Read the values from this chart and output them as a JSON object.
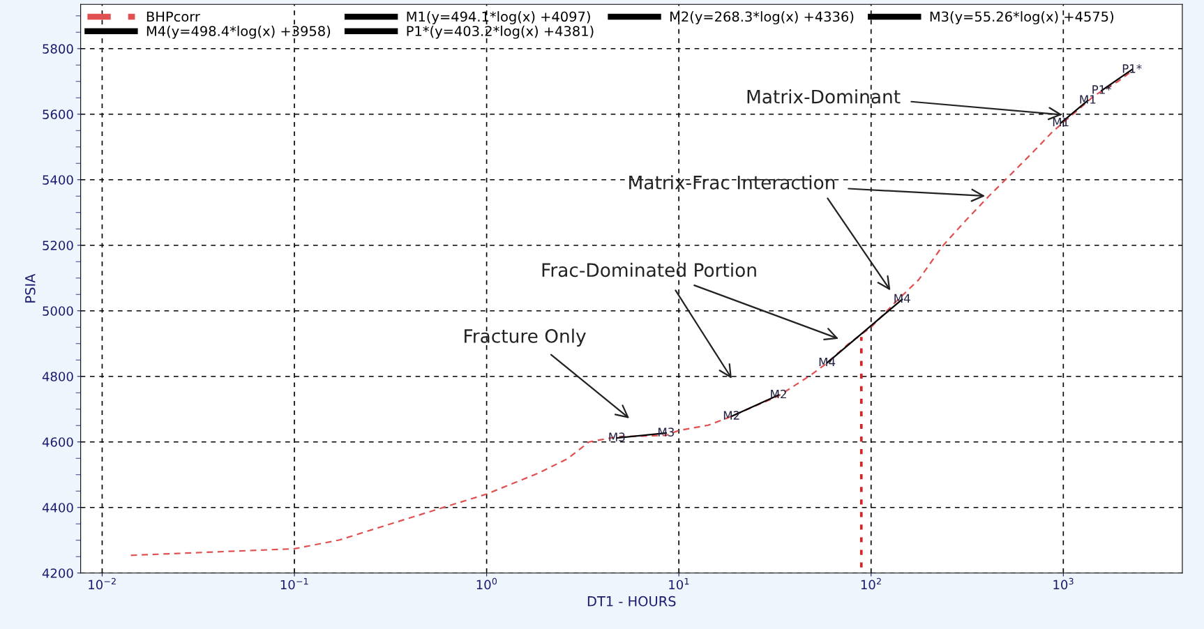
{
  "chart_data": {
    "type": "line",
    "xlabel": "DT1 - HOURS",
    "ylabel": "PSIA",
    "log": "x",
    "xlim": [
      0.00773,
      4160
    ],
    "ylim": [
      4200,
      5935
    ],
    "xticks": [
      {
        "value": 0.01,
        "label": "10$^{−2}$"
      },
      {
        "value": 0.1,
        "label": "10$^{−1}$"
      },
      {
        "value": 1,
        "label": "10$^{0}$"
      },
      {
        "value": 10,
        "label": "10$^{1}$"
      },
      {
        "value": 100,
        "label": "10$^{2}$"
      },
      {
        "value": 1000,
        "label": "10$^{3}$"
      }
    ],
    "yticks": [
      4200,
      4400,
      4600,
      4800,
      5000,
      5200,
      5400,
      5600,
      5800
    ],
    "grid": true,
    "legend": "top",
    "marker": "none",
    "series": [
      {
        "name": "BHPcorr",
        "color": "#e05050",
        "line_style": "dashed",
        "x": [
          0.0141,
          0.1,
          0.172,
          0.313,
          0.618,
          1,
          1.88,
          2.64,
          3.41,
          4.79,
          8.58,
          10,
          14.2,
          17.7,
          32.9,
          40,
          48.6,
          57.5,
          76.2,
          100,
          133,
          177,
          234,
          310,
          410,
          528,
          700,
          877,
          1000,
          1161,
          1453,
          1924,
          2275
        ],
        "values": [
          4254,
          4274,
          4301,
          4349,
          4403,
          4441,
          4506,
          4549,
          4600,
          4616,
          4620,
          4635,
          4651,
          4672,
          4740,
          4772,
          4804,
          4836,
          4899,
          4950,
          5025,
          5095,
          5196,
          5275,
          5350,
          5414,
          5486,
          5546,
          5575,
          5607,
          5657,
          5700,
          5732
        ]
      },
      {
        "name": "M1(y=494.1*log(x) +4097)",
        "color": "#000000",
        "line_style": "solid",
        "x": [
          970,
          1340
        ],
        "values": [
          5573,
          5642
        ]
      },
      {
        "name": "M2(y=268.3*log(x) +4336)",
        "color": "#000000",
        "line_style": "solid",
        "x": [
          18.8,
          33
        ],
        "values": [
          4678,
          4743
        ]
      },
      {
        "name": "M3(y=55.26*log(x) +4575)",
        "color": "#000000",
        "line_style": "solid",
        "x": [
          4.76,
          8.58
        ],
        "values": [
          4612,
          4627
        ]
      },
      {
        "name": "M4(y=498.4*log(x) +3958)",
        "color": "#000000",
        "line_style": "solid",
        "x": [
          59,
          145
        ],
        "values": [
          4841,
          5035
        ]
      },
      {
        "name": "P1*(y=403.2*log(x) +4381)",
        "color": "#000000",
        "line_style": "solid",
        "x": [
          1581,
          2275
        ],
        "values": [
          5672,
          5736
        ]
      },
      {
        "color": "#e02020",
        "line_style": "dotted",
        "x": [
          89,
          89
        ],
        "values": [
          4217,
          4920
        ]
      }
    ],
    "annotations": [
      {
        "text": "M1",
        "x": 970,
        "y": 5573
      },
      {
        "text": "M1",
        "x": 1340,
        "y": 5642
      },
      {
        "text": "P1*",
        "x": 1581,
        "y": 5672
      },
      {
        "text": "P1*",
        "x": 2275,
        "y": 5736
      },
      {
        "text": "M2",
        "x": 18.8,
        "y": 4678
      },
      {
        "text": "M2",
        "x": 33,
        "y": 4743
      },
      {
        "text": "M3",
        "x": 4.76,
        "y": 4612
      },
      {
        "text": "M3",
        "x": 8.58,
        "y": 4627
      },
      {
        "text": "M4",
        "x": 59,
        "y": 4841
      },
      {
        "text": "M4",
        "x": 145,
        "y": 5035
      },
      "Matrix-Dominant",
      "Matrix-Frac Interaction",
      "Frac-Dominated Portion",
      "Fracture Only"
    ]
  }
}
